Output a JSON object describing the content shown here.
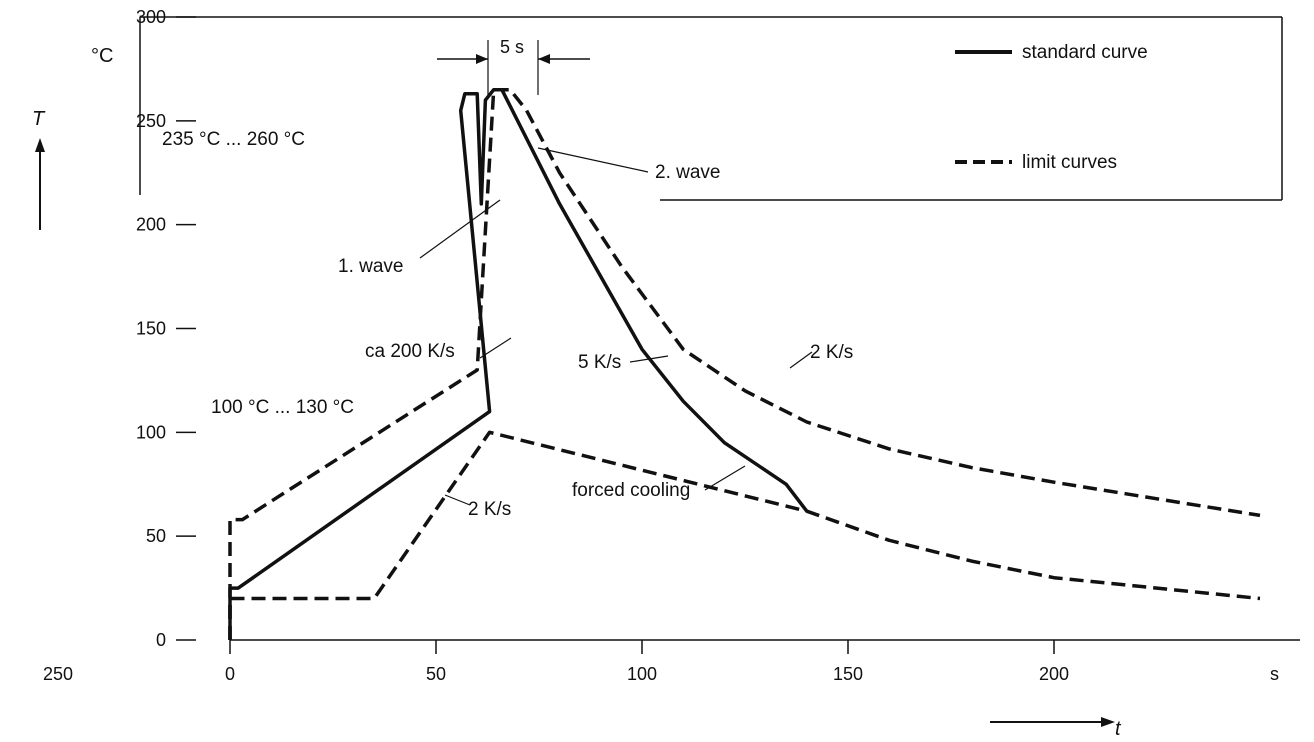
{
  "chart_data": {
    "type": "line",
    "title": "",
    "xlabel": "t",
    "ylabel": "T",
    "x_unit": "s",
    "y_unit": "°C",
    "xlim": [
      0,
      250
    ],
    "ylim": [
      0,
      300
    ],
    "x_ticks": [
      0,
      50,
      100,
      150,
      200
    ],
    "x_tick_labels": [
      "0",
      "50",
      "100",
      "150",
      "200"
    ],
    "x_tick_extra": "250",
    "y_ticks": [
      0,
      50,
      100,
      150,
      200,
      250,
      300
    ],
    "y_tick_labels": [
      "0",
      "50",
      "100",
      "150",
      "200",
      "250",
      "300"
    ],
    "legend": {
      "position": "top-right",
      "entries": [
        {
          "label": "standard curve",
          "style": "solid"
        },
        {
          "label": "limit curves",
          "style": "dashed"
        }
      ]
    },
    "annotations": {
      "peak_range": "235 °C ... 260 °C",
      "preheat_range": "100 °C ... 130 °C",
      "dwell": "5 s",
      "wave1": "1. wave",
      "wave2": "2. wave",
      "rate_200": "ca 200 K/s",
      "rate_5": "5 K/s",
      "rate_2": "2 K/s",
      "rate_preheat": "2 K/s",
      "forced_cooling": "forced cooling"
    },
    "series": [
      {
        "name": "standard curve",
        "style": "solid",
        "x": [
          0,
          0,
          0,
          2,
          63,
          63,
          56,
          57,
          60,
          61,
          62,
          64,
          66,
          80,
          100,
          110,
          120,
          135,
          140
        ],
        "y": [
          0,
          25,
          25,
          25,
          110,
          110,
          255,
          263,
          263,
          210,
          260,
          265,
          265,
          210,
          140,
          115,
          95,
          75,
          62
        ]
      },
      {
        "name": "limit curves",
        "style": "dashed",
        "x": [
          0,
          0,
          3,
          60,
          60,
          64,
          68,
          72,
          80,
          95,
          110,
          125,
          140,
          160,
          180,
          200,
          225,
          250
        ],
        "y": [
          0,
          58,
          58,
          130,
          130,
          265,
          265,
          255,
          225,
          180,
          140,
          120,
          105,
          92,
          83,
          76,
          68,
          60
        ]
      },
      {
        "name": "limit curves",
        "style": "dashed",
        "x": [
          0,
          0,
          3,
          35,
          63,
          140,
          160,
          180,
          200,
          225,
          250
        ],
        "y": [
          0,
          20,
          20,
          20,
          100,
          62,
          48,
          38,
          30,
          25,
          20
        ]
      }
    ]
  }
}
